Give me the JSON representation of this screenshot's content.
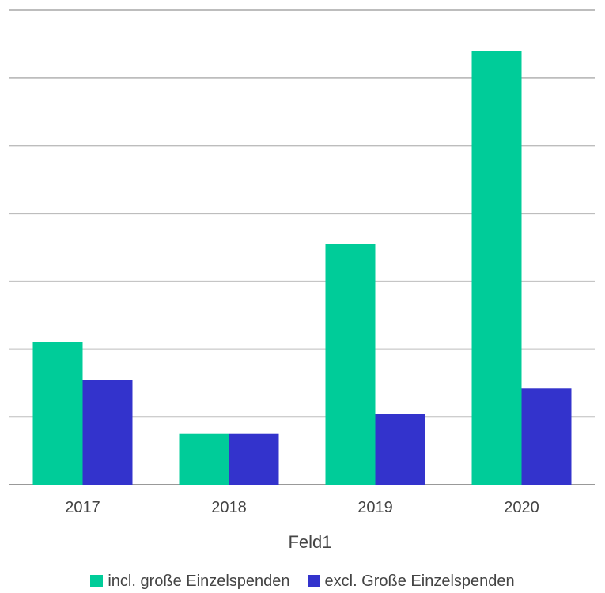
{
  "chart_data": {
    "type": "bar",
    "title": "",
    "xlabel": "Feld1",
    "ylabel": "",
    "categories": [
      "2017",
      "2018",
      "2019",
      "2020"
    ],
    "series": [
      {
        "name": "incl. große Einzelspenden",
        "color": "#00cc99",
        "values": [
          2.1,
          0.75,
          3.55,
          6.4
        ]
      },
      {
        "name": "excl. Große Einzelspenden",
        "color": "#3333cc",
        "values": [
          1.55,
          0.75,
          1.05,
          1.42
        ]
      }
    ],
    "ylim": [
      0,
      7
    ],
    "grid": true,
    "legend_position": "bottom"
  }
}
